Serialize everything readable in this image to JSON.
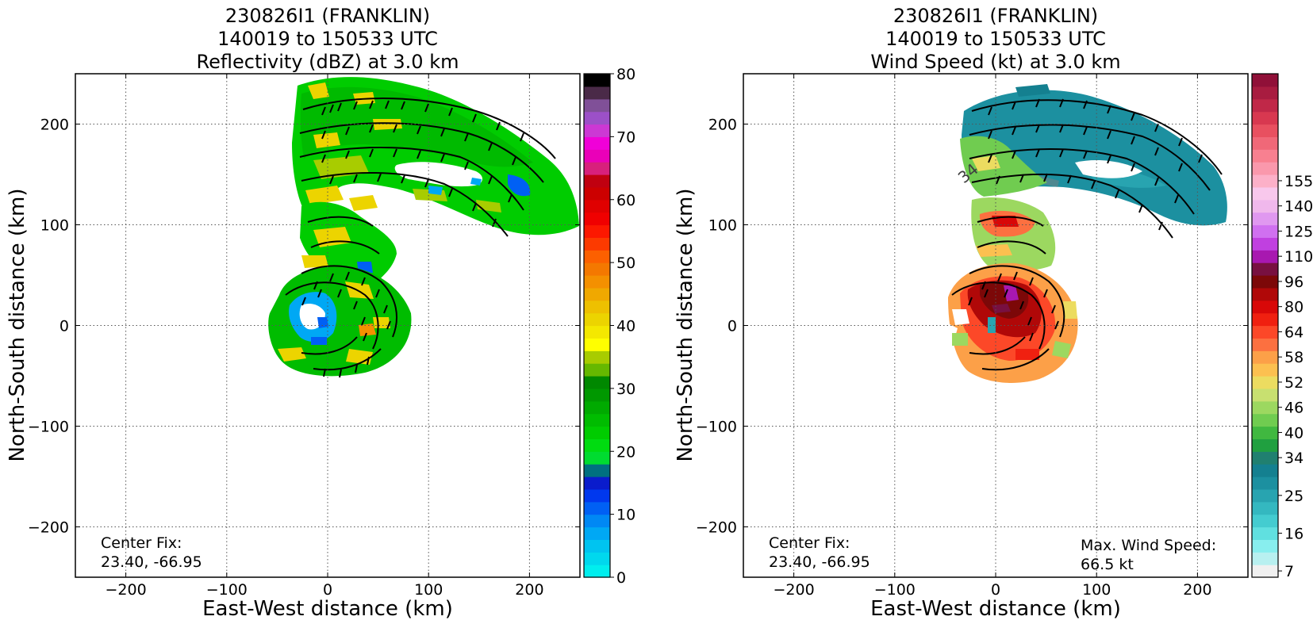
{
  "chart_data": [
    {
      "type": "heatmap",
      "title": [
        "230826I1 (FRANKLIN)",
        "140019 to 150533 UTC",
        "Reflectivity (dBZ) at 3.0 km"
      ],
      "xlabel": "East-West distance (km)",
      "ylabel": "North-South distance (km)",
      "xlim": [
        -250,
        250
      ],
      "ylim": [
        -250,
        250
      ],
      "xticks": [
        -200,
        -100,
        0,
        100,
        200
      ],
      "yticks": [
        -200,
        -100,
        0,
        100,
        200
      ],
      "grid": true,
      "annotations": [
        {
          "lines": [
            "Center Fix:",
            "23.40, -66.95"
          ],
          "position": "bottom-left"
        }
      ],
      "colorbar": {
        "range": [
          0,
          80
        ],
        "tick_labels": [
          "0",
          "10",
          "20",
          "30",
          "40",
          "50",
          "60",
          "70",
          "80"
        ],
        "tick_values": [
          0,
          10,
          20,
          30,
          40,
          50,
          60,
          70,
          80
        ],
        "colors": [
          "#00eeee",
          "#00d8ee",
          "#00c4f0",
          "#00a8f4",
          "#0088f4",
          "#0060f4",
          "#0038ee",
          "#0a1ccc",
          "#007080",
          "#00dc30",
          "#00dc10",
          "#00cc00",
          "#00bc00",
          "#00aa00",
          "#009800",
          "#008800",
          "#66b800",
          "#a8cc00",
          "#ffff00",
          "#f4e800",
          "#ecd400",
          "#eec000",
          "#f0a800",
          "#f49000",
          "#f47800",
          "#fc6000",
          "#fc3a00",
          "#fc1800",
          "#f00000",
          "#e00000",
          "#cc0000",
          "#c00010",
          "#d8207c",
          "#ea00b8",
          "#f000d8",
          "#cc38d4",
          "#9c50c8",
          "#805098",
          "#4a2a48",
          "#000000"
        ]
      },
      "regions_description": "none"
    },
    {
      "type": "heatmap",
      "title": [
        "230826I1 (FRANKLIN)",
        "140019 to 150533 UTC",
        "Wind Speed (kt) at 3.0 km"
      ],
      "xlabel": "East-West distance (km)",
      "ylabel": "North-South distance (km)",
      "xlim": [
        -250,
        250
      ],
      "ylim": [
        -250,
        250
      ],
      "xticks": [
        -200,
        -100,
        0,
        100,
        200
      ],
      "yticks": [
        -200,
        -100,
        0,
        100,
        200
      ],
      "grid": true,
      "annotations": [
        {
          "lines": [
            "Center Fix:",
            "23.40, -66.95"
          ],
          "position": "bottom-left"
        },
        {
          "lines": [
            "Max. Wind Speed:",
            "66.5 kt"
          ],
          "position": "bottom-right"
        }
      ],
      "contour_labels": [
        "34"
      ],
      "colorbar": {
        "tick_labels": [
          "7",
          "16",
          "25",
          "34",
          "40",
          "46",
          "52",
          "58",
          "64",
          "80",
          "96",
          "110",
          "125",
          "140",
          "155"
        ],
        "tick_index": [
          0,
          3,
          6,
          9,
          11,
          13,
          15,
          17,
          19,
          21,
          23,
          25,
          27,
          29,
          31
        ],
        "colors": [
          "#f0f0f0",
          "#b8f0f0",
          "#88eeee",
          "#60e0e0",
          "#44ccd0",
          "#34b8c0",
          "#28a4b0",
          "#1c90a0",
          "#148090",
          "#208070",
          "#20a040",
          "#40b840",
          "#70cc50",
          "#9cd860",
          "#c8e070",
          "#ecdc60",
          "#fcc050",
          "#fca048",
          "#fc7040",
          "#fc4828",
          "#f02010",
          "#d80808",
          "#b00808",
          "#7c0808",
          "#781040",
          "#a818b0",
          "#c040e0",
          "#d070f0",
          "#e098f0",
          "#f0b8ec",
          "#f8c8ec",
          "#fcb0c8",
          "#fa98ac",
          "#f88090",
          "#f06878",
          "#e85060",
          "#d83850",
          "#c02848",
          "#a81c40",
          "#901038"
        ]
      }
    }
  ]
}
